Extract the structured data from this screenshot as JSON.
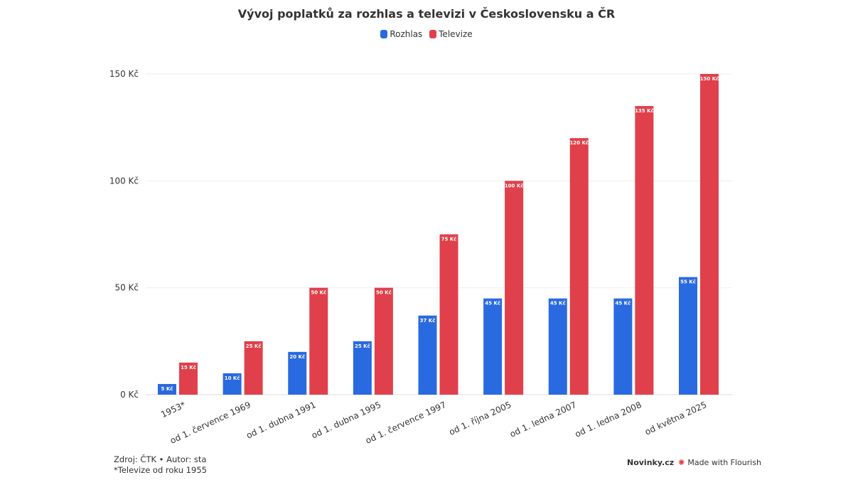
{
  "chart_data": {
    "type": "bar",
    "title": "Vývoj poplatků za rozhlas a televizi v Československu a ČR",
    "categories": [
      "1953*",
      "od 1. července 1969",
      "od 1. dubna 1991",
      "od 1. dubna 1995",
      "od 1. července 1997",
      "od 1. října 2005",
      "od 1. ledna 2007",
      "od 1. ledna 2008",
      "od května 2025"
    ],
    "series": [
      {
        "name": "Rozhlas",
        "color": "#2a6ae0",
        "values": [
          5,
          10,
          20,
          25,
          37,
          45,
          45,
          45,
          55
        ]
      },
      {
        "name": "Televize",
        "color": "#e0404b",
        "values": [
          15,
          25,
          50,
          50,
          75,
          100,
          120,
          135,
          150
        ]
      }
    ],
    "value_suffix": " Kč",
    "ylim": [
      0,
      150
    ],
    "yticks": [
      0,
      50,
      100,
      150
    ],
    "ytick_labels": [
      "0 Kč",
      "50 Kč",
      "100 Kč",
      "150 Kč"
    ],
    "grid": true,
    "legend_position": "top"
  },
  "footer": {
    "source": "Zdroj: ČTK • Autor: sta",
    "note": "*Televize od roku 1955",
    "brand": "Novinky.cz",
    "flourish": "Made with Flourish"
  }
}
